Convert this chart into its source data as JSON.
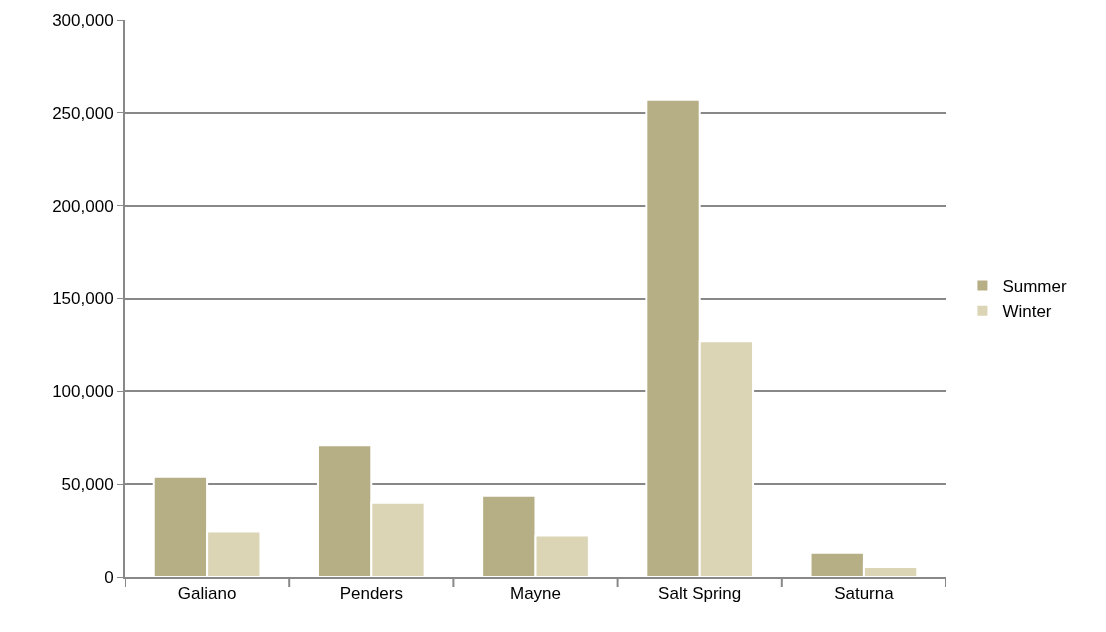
{
  "chart_data": {
    "type": "bar",
    "categories": [
      "Galiano",
      "Penders",
      "Mayne",
      "Salt Spring",
      "Saturna"
    ],
    "series": [
      {
        "name": "Summer",
        "color": "#b6ae84",
        "values": [
          54000,
          71000,
          43700,
          257000,
          13000
        ]
      },
      {
        "name": "Winter",
        "color": "#dbd4b5",
        "values": [
          24500,
          40000,
          22300,
          127000,
          5400
        ]
      }
    ],
    "ylim": [
      0,
      300000
    ],
    "yticks": [
      {
        "value": 0,
        "label": "0"
      },
      {
        "value": 50000,
        "label": "50,000"
      },
      {
        "value": 100000,
        "label": "100,000"
      },
      {
        "value": 150000,
        "label": "150,000"
      },
      {
        "value": 200000,
        "label": "200,000"
      },
      {
        "value": 250000,
        "label": "250,000"
      },
      {
        "value": 300000,
        "label": "300,000"
      }
    ],
    "grid": "y",
    "legend": "right"
  }
}
